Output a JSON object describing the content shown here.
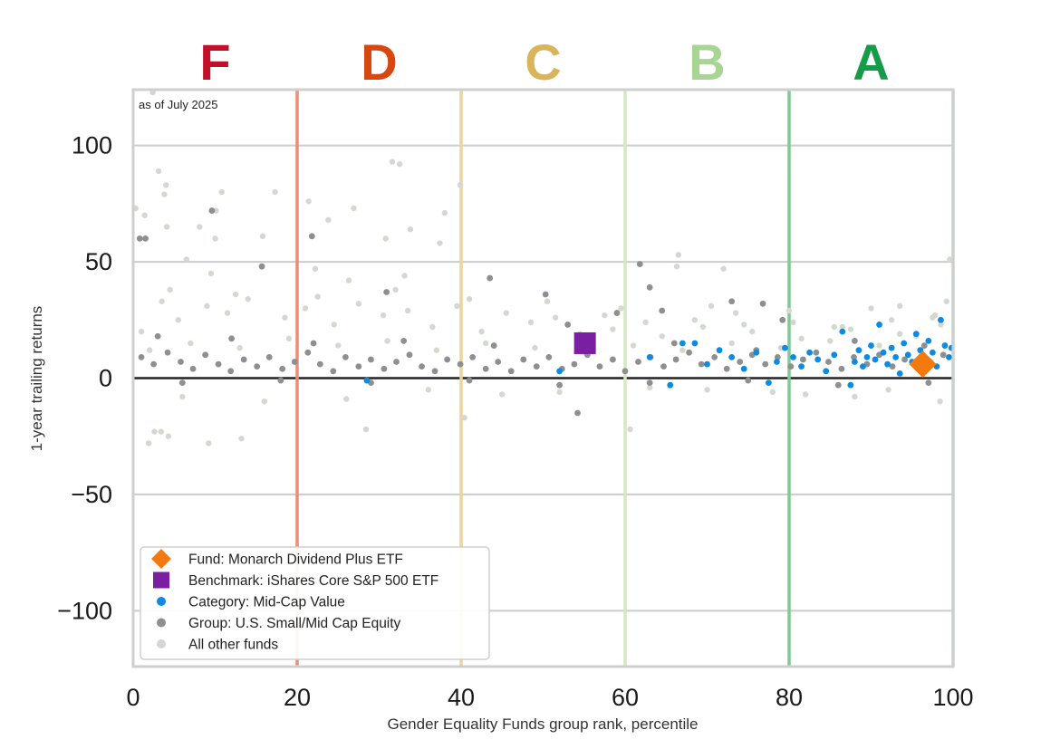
{
  "chart_data": {
    "type": "scatter",
    "note": "as of July 2025",
    "xlabel": "Gender Equality Funds group rank, percentile",
    "ylabel": "1-year trailing returns",
    "xlim": [
      0,
      100
    ],
    "ylim": [
      -124,
      124
    ],
    "x_ticks": [
      0,
      20,
      40,
      60,
      80,
      100
    ],
    "y_ticks": [
      100,
      50,
      0,
      -50,
      -100
    ],
    "y_tick_labels": [
      "100",
      "50",
      "0",
      "−50",
      "−100"
    ],
    "grid": "horizontal",
    "legend_position": "lower-left",
    "grade_bands": [
      {
        "label": "F",
        "from": 0,
        "to": 20,
        "color": "#c2102b",
        "line_color": "#ee8d75"
      },
      {
        "label": "D",
        "from": 20,
        "to": 40,
        "color": "#d7470f",
        "line_color": "#efd39c"
      },
      {
        "label": "C",
        "from": 40,
        "to": 60,
        "color": "#d9b45b",
        "line_color": "#d4e8c4"
      },
      {
        "label": "B",
        "from": 60,
        "to": 80,
        "color": "#a9d594",
        "line_color": "#7dcb94"
      },
      {
        "label": "A",
        "from": 80,
        "to": 100,
        "color": "#169c48",
        "line_color": "#a9ddb9"
      }
    ],
    "series": [
      {
        "name": "All other funds",
        "color": "#d3d9d0",
        "points": [
          [
            0.3,
            73
          ],
          [
            2.4,
            125
          ],
          [
            3.1,
            89
          ],
          [
            4.0,
            83
          ],
          [
            3.8,
            79
          ],
          [
            1.4,
            70
          ],
          [
            4.1,
            65
          ],
          [
            8.1,
            65
          ],
          [
            10.1,
            72
          ],
          [
            10.8,
            80
          ],
          [
            10.0,
            60
          ],
          [
            6.5,
            51
          ],
          [
            9.5,
            45
          ],
          [
            4.3,
            -25
          ],
          [
            2.6,
            -23
          ],
          [
            1.9,
            -28
          ],
          [
            3.4,
            -23
          ],
          [
            9.2,
            -28
          ],
          [
            13.2,
            -26
          ],
          [
            17.3,
            80
          ],
          [
            21.4,
            76
          ],
          [
            23.8,
            68
          ],
          [
            26.9,
            73
          ],
          [
            31.6,
            93
          ],
          [
            32.5,
            92
          ],
          [
            30.8,
            60
          ],
          [
            33.8,
            64
          ],
          [
            38.0,
            71
          ],
          [
            39.9,
            83
          ],
          [
            37.4,
            58
          ],
          [
            33.1,
            44
          ],
          [
            26.3,
            42
          ],
          [
            22.2,
            47
          ],
          [
            15.8,
            61
          ],
          [
            28.4,
            -22
          ],
          [
            40.4,
            -17
          ],
          [
            60.6,
            -22
          ],
          [
            66.3,
            48
          ],
          [
            72.0,
            47
          ],
          [
            66.5,
            53
          ],
          [
            73.5,
            28
          ],
          [
            85.5,
            22
          ],
          [
            93.5,
            31
          ],
          [
            99.2,
            33
          ],
          [
            99.6,
            51
          ],
          [
            95.5,
            18
          ],
          [
            97.8,
            27
          ],
          [
            98.4,
            -10
          ],
          [
            92.1,
            -5
          ],
          [
            88.0,
            -8
          ],
          [
            82.0,
            -7
          ],
          [
            78.0,
            -6
          ],
          [
            70.0,
            -5
          ],
          [
            63.0,
            -4
          ],
          [
            52.0,
            -6
          ],
          [
            45.0,
            -7
          ],
          [
            36.0,
            -5
          ],
          [
            26.0,
            -9
          ],
          [
            16.0,
            -10
          ],
          [
            6.0,
            -8
          ],
          [
            1.0,
            20
          ],
          [
            5.5,
            25
          ],
          [
            11.5,
            28
          ],
          [
            18.5,
            26
          ],
          [
            24.5,
            23
          ],
          [
            30.5,
            27
          ],
          [
            36.5,
            22
          ],
          [
            42.5,
            20
          ],
          [
            48.5,
            24
          ],
          [
            54.5,
            19
          ],
          [
            58.5,
            21
          ],
          [
            64.5,
            18
          ],
          [
            69.5,
            22
          ],
          [
            75.5,
            20
          ],
          [
            81.5,
            17
          ],
          [
            87.5,
            21
          ],
          [
            93.5,
            19
          ],
          [
            98.5,
            23
          ],
          [
            3.5,
            33
          ],
          [
            9.0,
            31
          ],
          [
            14.0,
            34
          ],
          [
            21.0,
            30
          ],
          [
            27.5,
            32
          ],
          [
            33.5,
            29
          ],
          [
            39.5,
            31
          ],
          [
            45.5,
            28
          ],
          [
            51.5,
            26
          ],
          [
            57.5,
            27
          ],
          [
            62.5,
            24
          ],
          [
            68.5,
            25
          ],
          [
            74.5,
            23
          ],
          [
            80.5,
            24
          ],
          [
            86.5,
            22
          ],
          [
            92.5,
            25
          ],
          [
            97.5,
            26
          ],
          [
            2.0,
            12
          ],
          [
            7.0,
            15
          ],
          [
            13.0,
            13
          ],
          [
            19.0,
            17
          ],
          [
            25.0,
            14
          ],
          [
            31.0,
            16
          ],
          [
            37.0,
            12
          ],
          [
            43.0,
            15
          ],
          [
            49.0,
            13
          ],
          [
            55.0,
            11
          ],
          [
            61.0,
            14
          ],
          [
            67.0,
            12
          ],
          [
            73.0,
            15
          ],
          [
            79.0,
            13
          ],
          [
            85.0,
            16
          ],
          [
            91.0,
            14
          ],
          [
            96.0,
            12
          ],
          [
            4.5,
            38
          ],
          [
            12.5,
            36
          ],
          [
            22.5,
            35
          ],
          [
            32.0,
            38
          ],
          [
            41.0,
            34
          ],
          [
            50.5,
            33
          ],
          [
            59.5,
            30
          ],
          [
            70.5,
            31
          ],
          [
            80.0,
            29
          ],
          [
            90.0,
            30
          ]
        ]
      },
      {
        "name": "Group: U.S. Small/Mid Cap Equity",
        "color": "#8f8f8f",
        "points": [
          [
            0.8,
            60
          ],
          [
            1.5,
            60
          ],
          [
            9.6,
            72
          ],
          [
            15.7,
            48
          ],
          [
            21.8,
            61
          ],
          [
            30.9,
            37
          ],
          [
            43.5,
            43
          ],
          [
            50.3,
            36
          ],
          [
            53.0,
            23
          ],
          [
            54.2,
            -15
          ],
          [
            59.0,
            28
          ],
          [
            61.8,
            49
          ],
          [
            63.0,
            39
          ],
          [
            64.5,
            29
          ],
          [
            73.0,
            33
          ],
          [
            76.8,
            32
          ],
          [
            79.2,
            25
          ],
          [
            1.0,
            9
          ],
          [
            2.5,
            6
          ],
          [
            4.2,
            11
          ],
          [
            5.8,
            7
          ],
          [
            7.3,
            4
          ],
          [
            8.8,
            10
          ],
          [
            10.4,
            6
          ],
          [
            11.9,
            3
          ],
          [
            13.5,
            8
          ],
          [
            15.1,
            5
          ],
          [
            16.6,
            9
          ],
          [
            18.2,
            4
          ],
          [
            19.7,
            7
          ],
          [
            21.3,
            11
          ],
          [
            22.8,
            6
          ],
          [
            24.4,
            3
          ],
          [
            25.9,
            9
          ],
          [
            27.5,
            5
          ],
          [
            29.0,
            8
          ],
          [
            30.6,
            4
          ],
          [
            32.1,
            7
          ],
          [
            33.7,
            10
          ],
          [
            35.2,
            5
          ],
          [
            36.8,
            3
          ],
          [
            38.3,
            8
          ],
          [
            39.9,
            6
          ],
          [
            41.4,
            9
          ],
          [
            43.0,
            4
          ],
          [
            44.5,
            7
          ],
          [
            46.1,
            3
          ],
          [
            47.6,
            8
          ],
          [
            49.2,
            5
          ],
          [
            50.7,
            9
          ],
          [
            52.3,
            4
          ],
          [
            53.8,
            6
          ],
          [
            55.4,
            10
          ],
          [
            56.9,
            5
          ],
          [
            58.5,
            8
          ],
          [
            60.0,
            3
          ],
          [
            61.6,
            7
          ],
          [
            63.1,
            9
          ],
          [
            64.7,
            5
          ],
          [
            66.2,
            8
          ],
          [
            67.8,
            11
          ],
          [
            69.3,
            6
          ],
          [
            70.9,
            9
          ],
          [
            72.4,
            4
          ],
          [
            74.0,
            7
          ],
          [
            75.5,
            10
          ],
          [
            77.1,
            6
          ],
          [
            78.6,
            9
          ],
          [
            80.2,
            5
          ],
          [
            81.7,
            8
          ],
          [
            83.3,
            11
          ],
          [
            84.8,
            7
          ],
          [
            86.4,
            4
          ],
          [
            87.9,
            9
          ],
          [
            89.5,
            6
          ],
          [
            91.0,
            10
          ],
          [
            92.6,
            5
          ],
          [
            94.1,
            8
          ],
          [
            95.7,
            4
          ],
          [
            97.2,
            7
          ],
          [
            98.8,
            10
          ],
          [
            3.0,
            18
          ],
          [
            12.0,
            17
          ],
          [
            22.0,
            15
          ],
          [
            33.0,
            16
          ],
          [
            44.0,
            14
          ],
          [
            56.0,
            13
          ],
          [
            66.0,
            15
          ],
          [
            76.0,
            12
          ],
          [
            88.0,
            16
          ],
          [
            96.5,
            14
          ],
          [
            6.0,
            -2
          ],
          [
            18.0,
            -1
          ],
          [
            29.0,
            -2
          ],
          [
            41.0,
            -1
          ],
          [
            52.0,
            -3
          ],
          [
            63.0,
            -2
          ],
          [
            75.0,
            -1
          ],
          [
            86.0,
            -3
          ],
          [
            97.0,
            -2
          ]
        ]
      },
      {
        "name": "Category: Mid-Cap Value",
        "color": "#0c8be0",
        "points": [
          [
            28.5,
            -1
          ],
          [
            52.0,
            3
          ],
          [
            63.0,
            9
          ],
          [
            65.5,
            -3
          ],
          [
            67.0,
            15
          ],
          [
            68.5,
            15
          ],
          [
            70.0,
            6
          ],
          [
            71.5,
            12
          ],
          [
            73.0,
            9
          ],
          [
            74.5,
            4
          ],
          [
            76.0,
            11
          ],
          [
            77.5,
            -2
          ],
          [
            78.5,
            7
          ],
          [
            79.5,
            13
          ],
          [
            80.5,
            9
          ],
          [
            81.5,
            5
          ],
          [
            82.5,
            11
          ],
          [
            83.5,
            8
          ],
          [
            84.5,
            3
          ],
          [
            85.5,
            10
          ],
          [
            86.5,
            20
          ],
          [
            87.5,
            -3
          ],
          [
            88.0,
            7
          ],
          [
            88.5,
            12
          ],
          [
            89.0,
            5
          ],
          [
            89.5,
            9
          ],
          [
            90.0,
            14
          ],
          [
            90.5,
            8
          ],
          [
            91.0,
            23
          ],
          [
            91.5,
            11
          ],
          [
            92.0,
            6
          ],
          [
            92.5,
            13
          ],
          [
            93.0,
            9
          ],
          [
            93.5,
            2
          ],
          [
            94.0,
            15
          ],
          [
            94.5,
            10
          ],
          [
            95.0,
            7
          ],
          [
            95.5,
            19
          ],
          [
            96.0,
            12
          ],
          [
            96.5,
            8
          ],
          [
            97.0,
            16
          ],
          [
            97.5,
            11
          ],
          [
            98.0,
            5
          ],
          [
            98.5,
            25
          ],
          [
            99.0,
            14
          ],
          [
            99.5,
            9
          ],
          [
            99.8,
            13
          ]
        ]
      },
      {
        "name": "Benchmark: iShares Core S&P 500 ETF",
        "color": "#7b1fa2",
        "points": [
          [
            55.1,
            15
          ]
        ]
      },
      {
        "name": "Fund: Monarch Dividend Plus ETF",
        "color": "#f47a0f",
        "points": [
          [
            96.3,
            6
          ]
        ]
      }
    ],
    "legend": [
      {
        "label": "Fund: Monarch Dividend Plus ETF",
        "marker": "diamond",
        "color": "#f47a0f"
      },
      {
        "label": "Benchmark: iShares Core S&P 500 ETF",
        "marker": "square",
        "color": "#7b1fa2"
      },
      {
        "label": "Category: Mid-Cap Value",
        "marker": "circle",
        "color": "#0c8be0"
      },
      {
        "label": "Group: U.S. Small/Mid Cap Equity",
        "marker": "circle",
        "color": "#8f8f8f"
      },
      {
        "label": "All other funds",
        "marker": "circle",
        "color": "#d3d9d0"
      }
    ]
  }
}
